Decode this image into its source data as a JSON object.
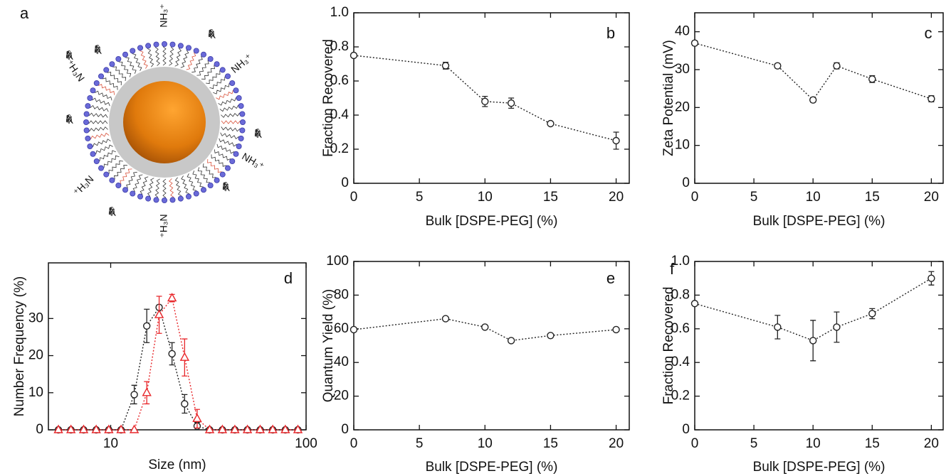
{
  "schematic": {
    "panel_label": "a",
    "amine_labels": [
      "NH₃⁺",
      "NH₃⁺",
      "NH₃⁺",
      "⁺H₃N",
      "⁺H₃N",
      "⁺H₃N"
    ]
  },
  "chart_data": [
    {
      "type": "line",
      "panel_label": "b",
      "ylabel": "Fraction Recovered",
      "xlabel": "Bulk [DSPE-PEG] (%)",
      "x": [
        0,
        7,
        10,
        12,
        15,
        20
      ],
      "values": [
        0.75,
        0.69,
        0.48,
        0.47,
        0.35,
        0.25
      ],
      "errors": [
        0.01,
        0.02,
        0.03,
        0.03,
        0.01,
        0.05
      ],
      "color": "#222222",
      "marker": "circle",
      "xlim": [
        0,
        21
      ],
      "xticks": [
        0,
        5,
        10,
        15,
        20
      ],
      "ylim": [
        0,
        1
      ],
      "yticks": [
        0,
        0.2,
        0.4,
        0.6,
        0.8,
        {
          "value": 1,
          "label": "1.0"
        }
      ]
    },
    {
      "type": "line",
      "panel_label": "c",
      "ylabel": "Zeta Potential (mV)",
      "xlabel": "Bulk [DSPE-PEG] (%)",
      "x": [
        0,
        7,
        10,
        12,
        15,
        20
      ],
      "values": [
        37,
        31,
        22,
        31,
        27.5,
        22.3
      ],
      "errors": [
        0.6,
        0.6,
        0.6,
        0.8,
        0.9,
        0.8
      ],
      "color": "#222222",
      "marker": "circle",
      "xlim": [
        0,
        21
      ],
      "xticks": [
        0,
        5,
        10,
        15,
        20
      ],
      "ylim": [
        0,
        45
      ],
      "yticks": [
        0,
        10,
        20,
        30,
        40
      ]
    },
    {
      "type": "line",
      "panel_label": "d",
      "ylabel": "Number Frequency (%)",
      "xlabel": "Size (nm)",
      "log_x": true,
      "x": [
        5.4,
        6.26,
        7.27,
        8.43,
        9.78,
        11.3,
        13.2,
        15.3,
        17.7,
        20.6,
        23.9,
        27.7,
        32.1,
        37.3,
        43.2,
        50.1,
        58.2,
        67.5,
        78.3,
        90.8
      ],
      "series": [
        {
          "color": "#222222",
          "marker": "circle",
          "values": [
            0,
            0,
            0,
            0,
            0,
            0,
            9.5,
            28,
            33,
            20.5,
            7,
            1,
            0,
            0,
            0,
            0,
            0,
            0,
            0,
            0
          ],
          "errors": [
            0,
            0,
            0,
            0,
            0,
            0,
            2.5,
            4.5,
            0.6,
            3,
            2.5,
            1,
            0,
            0,
            0,
            0,
            0,
            0,
            0,
            0
          ]
        },
        {
          "color": "#e8262a",
          "marker": "triangle",
          "values": [
            0,
            0,
            0,
            0,
            0,
            0,
            0,
            10,
            31,
            35.5,
            19.5,
            3,
            0,
            0,
            0,
            0,
            0,
            0,
            0,
            0
          ],
          "errors": [
            0,
            0,
            0,
            0,
            0,
            0,
            0,
            3,
            5,
            1,
            5,
            2.5,
            0,
            0,
            0,
            0,
            0,
            0,
            0,
            0
          ]
        }
      ],
      "xlim": [
        4.8,
        100
      ],
      "xticks": [
        10,
        100
      ],
      "ylim": [
        0,
        45
      ],
      "yticks": [
        0,
        10,
        20,
        30
      ]
    },
    {
      "type": "line",
      "panel_label": "e",
      "ylabel": "Quantum Yield (%)",
      "xlabel": "Bulk [DSPE-PEG] (%)",
      "x": [
        0,
        7,
        10,
        12,
        15,
        20
      ],
      "values": [
        59.5,
        66,
        61,
        53,
        56,
        59.5
      ],
      "errors": [
        1,
        1,
        1,
        1,
        1,
        1
      ],
      "color": "#222222",
      "marker": "circle",
      "xlim": [
        0,
        21
      ],
      "xticks": [
        0,
        5,
        10,
        15,
        20
      ],
      "ylim": [
        0,
        100
      ],
      "yticks": [
        0,
        20,
        40,
        60,
        80,
        100
      ]
    },
    {
      "type": "line",
      "panel_label": "f",
      "ylabel": "Fraction Recovered",
      "xlabel": "Bulk [DSPE-PEG] (%)",
      "x": [
        0,
        7,
        10,
        12,
        15,
        20
      ],
      "values": [
        0.75,
        0.61,
        0.53,
        0.61,
        0.69,
        0.9
      ],
      "errors": [
        0.01,
        0.07,
        0.12,
        0.09,
        0.03,
        0.04
      ],
      "color": "#222222",
      "marker": "circle",
      "xlim": [
        0,
        21
      ],
      "xticks": [
        0,
        5,
        10,
        15,
        20
      ],
      "ylim": [
        0,
        1
      ],
      "yticks": [
        0,
        0.2,
        0.4,
        0.6,
        0.8,
        {
          "value": 1,
          "label": "1.0"
        }
      ]
    }
  ]
}
